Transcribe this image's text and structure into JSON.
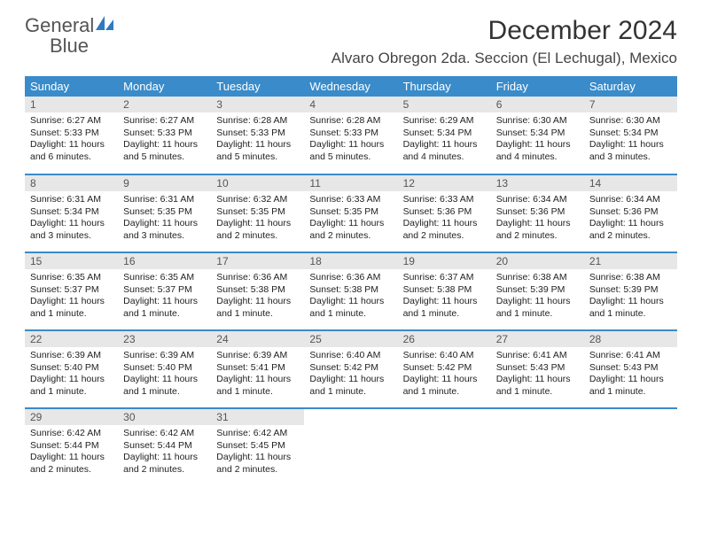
{
  "brand": {
    "word1": "General",
    "word2": "Blue"
  },
  "title": "December 2024",
  "location": "Alvaro Obregon 2da. Seccion (El Lechugal), Mexico",
  "colors": {
    "header_bg": "#3a8bc9",
    "header_text": "#ffffff",
    "daynum_bg": "#e7e7e7",
    "row_divider": "#3a8bc9",
    "body_text": "#222222",
    "title_text": "#333333",
    "brand_gray": "#555555",
    "brand_blue": "#2f7bbf",
    "page_bg": "#ffffff"
  },
  "day_headers": [
    "Sunday",
    "Monday",
    "Tuesday",
    "Wednesday",
    "Thursday",
    "Friday",
    "Saturday"
  ],
  "weeks": [
    [
      {
        "n": "1",
        "sr": "6:27 AM",
        "ss": "5:33 PM",
        "dl": "11 hours and 6 minutes."
      },
      {
        "n": "2",
        "sr": "6:27 AM",
        "ss": "5:33 PM",
        "dl": "11 hours and 5 minutes."
      },
      {
        "n": "3",
        "sr": "6:28 AM",
        "ss": "5:33 PM",
        "dl": "11 hours and 5 minutes."
      },
      {
        "n": "4",
        "sr": "6:28 AM",
        "ss": "5:33 PM",
        "dl": "11 hours and 5 minutes."
      },
      {
        "n": "5",
        "sr": "6:29 AM",
        "ss": "5:34 PM",
        "dl": "11 hours and 4 minutes."
      },
      {
        "n": "6",
        "sr": "6:30 AM",
        "ss": "5:34 PM",
        "dl": "11 hours and 4 minutes."
      },
      {
        "n": "7",
        "sr": "6:30 AM",
        "ss": "5:34 PM",
        "dl": "11 hours and 3 minutes."
      }
    ],
    [
      {
        "n": "8",
        "sr": "6:31 AM",
        "ss": "5:34 PM",
        "dl": "11 hours and 3 minutes."
      },
      {
        "n": "9",
        "sr": "6:31 AM",
        "ss": "5:35 PM",
        "dl": "11 hours and 3 minutes."
      },
      {
        "n": "10",
        "sr": "6:32 AM",
        "ss": "5:35 PM",
        "dl": "11 hours and 2 minutes."
      },
      {
        "n": "11",
        "sr": "6:33 AM",
        "ss": "5:35 PM",
        "dl": "11 hours and 2 minutes."
      },
      {
        "n": "12",
        "sr": "6:33 AM",
        "ss": "5:36 PM",
        "dl": "11 hours and 2 minutes."
      },
      {
        "n": "13",
        "sr": "6:34 AM",
        "ss": "5:36 PM",
        "dl": "11 hours and 2 minutes."
      },
      {
        "n": "14",
        "sr": "6:34 AM",
        "ss": "5:36 PM",
        "dl": "11 hours and 2 minutes."
      }
    ],
    [
      {
        "n": "15",
        "sr": "6:35 AM",
        "ss": "5:37 PM",
        "dl": "11 hours and 1 minute."
      },
      {
        "n": "16",
        "sr": "6:35 AM",
        "ss": "5:37 PM",
        "dl": "11 hours and 1 minute."
      },
      {
        "n": "17",
        "sr": "6:36 AM",
        "ss": "5:38 PM",
        "dl": "11 hours and 1 minute."
      },
      {
        "n": "18",
        "sr": "6:36 AM",
        "ss": "5:38 PM",
        "dl": "11 hours and 1 minute."
      },
      {
        "n": "19",
        "sr": "6:37 AM",
        "ss": "5:38 PM",
        "dl": "11 hours and 1 minute."
      },
      {
        "n": "20",
        "sr": "6:38 AM",
        "ss": "5:39 PM",
        "dl": "11 hours and 1 minute."
      },
      {
        "n": "21",
        "sr": "6:38 AM",
        "ss": "5:39 PM",
        "dl": "11 hours and 1 minute."
      }
    ],
    [
      {
        "n": "22",
        "sr": "6:39 AM",
        "ss": "5:40 PM",
        "dl": "11 hours and 1 minute."
      },
      {
        "n": "23",
        "sr": "6:39 AM",
        "ss": "5:40 PM",
        "dl": "11 hours and 1 minute."
      },
      {
        "n": "24",
        "sr": "6:39 AM",
        "ss": "5:41 PM",
        "dl": "11 hours and 1 minute."
      },
      {
        "n": "25",
        "sr": "6:40 AM",
        "ss": "5:42 PM",
        "dl": "11 hours and 1 minute."
      },
      {
        "n": "26",
        "sr": "6:40 AM",
        "ss": "5:42 PM",
        "dl": "11 hours and 1 minute."
      },
      {
        "n": "27",
        "sr": "6:41 AM",
        "ss": "5:43 PM",
        "dl": "11 hours and 1 minute."
      },
      {
        "n": "28",
        "sr": "6:41 AM",
        "ss": "5:43 PM",
        "dl": "11 hours and 1 minute."
      }
    ],
    [
      {
        "n": "29",
        "sr": "6:42 AM",
        "ss": "5:44 PM",
        "dl": "11 hours and 2 minutes."
      },
      {
        "n": "30",
        "sr": "6:42 AM",
        "ss": "5:44 PM",
        "dl": "11 hours and 2 minutes."
      },
      {
        "n": "31",
        "sr": "6:42 AM",
        "ss": "5:45 PM",
        "dl": "11 hours and 2 minutes."
      },
      null,
      null,
      null,
      null
    ]
  ],
  "labels": {
    "sunrise": "Sunrise:",
    "sunset": "Sunset:",
    "daylight": "Daylight:"
  }
}
